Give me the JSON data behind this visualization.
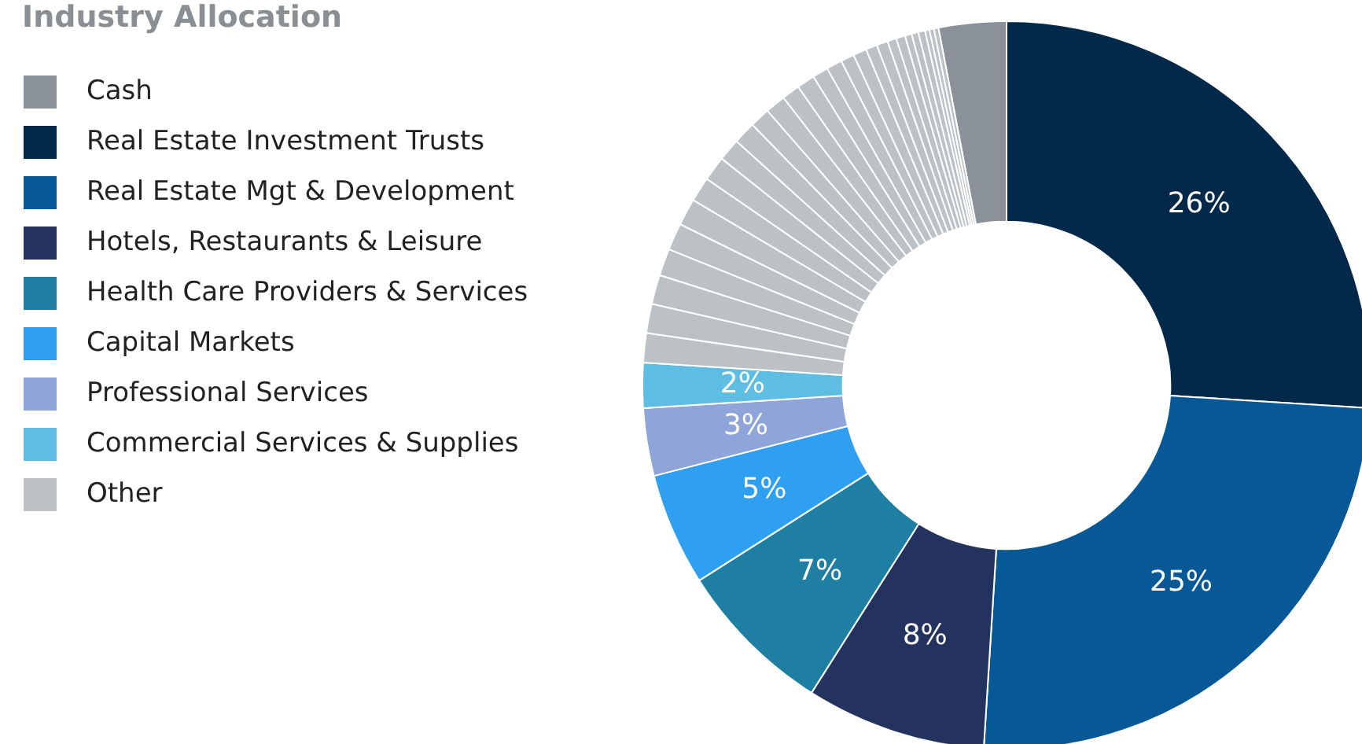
{
  "chart_data": {
    "type": "donut",
    "title": "Industry Allocation",
    "legend": "left",
    "categories": [
      "Cash",
      "Real Estate Investment Trusts",
      "Real Estate Mgt & Development",
      "Hotels, Restaurants & Leisure",
      "Health Care Providers & Services",
      "Capital Markets",
      "Professional Services",
      "Commercial Services & Supplies",
      "Other",
      null,
      null,
      null,
      null,
      null,
      null,
      null,
      null,
      null,
      null,
      null,
      null,
      null,
      null,
      null,
      null,
      null,
      null,
      null,
      null,
      null,
      null,
      null,
      null,
      null,
      null,
      null
    ],
    "values": [
      3,
      26,
      25,
      8,
      7,
      5,
      3,
      2,
      1.3,
      1.3,
      1.3,
      1.2,
      1.2,
      1.2,
      1.1,
      1.1,
      1.0,
      1.0,
      0.9,
      0.9,
      0.8,
      0.8,
      0.7,
      0.7,
      0.6,
      0.6,
      0.5,
      0.5,
      0.4,
      0.4,
      0.3,
      0.3,
      0.3,
      0.2,
      0.2,
      0.2
    ],
    "colors": [
      "#8a9198",
      "#03294a",
      "#065996",
      "#24325f",
      "#1f7fa3",
      "#2f9ff2",
      "#8fa4d8",
      "#5dbde3",
      "#bcc1c5",
      "#bcc1c5",
      "#bcc1c5",
      "#bcc1c5",
      "#bcc1c5",
      "#bcc1c5",
      "#bcc1c5",
      "#bcc1c5",
      "#bcc1c5",
      "#bcc1c5",
      "#bcc1c5",
      "#bcc1c5",
      "#bcc1c5",
      "#bcc1c5",
      "#bcc1c5",
      "#bcc1c5",
      "#bcc1c5",
      "#bcc1c5",
      "#bcc1c5",
      "#bcc1c5",
      "#bcc1c5",
      "#bcc1c5",
      "#bcc1c5",
      "#bcc1c5",
      "#bcc1c5",
      "#bcc1c5",
      "#bcc1c5",
      "#bcc1c5"
    ],
    "value_labels": [
      null,
      "26%",
      "25%",
      "8%",
      "7%",
      "5%",
      "3%",
      "2%",
      null,
      null,
      null,
      null,
      null,
      null,
      null,
      null,
      null,
      null,
      null,
      null,
      null,
      null,
      null,
      null,
      null,
      null,
      null,
      null,
      null,
      null,
      null,
      null,
      null,
      null,
      null,
      null
    ]
  }
}
